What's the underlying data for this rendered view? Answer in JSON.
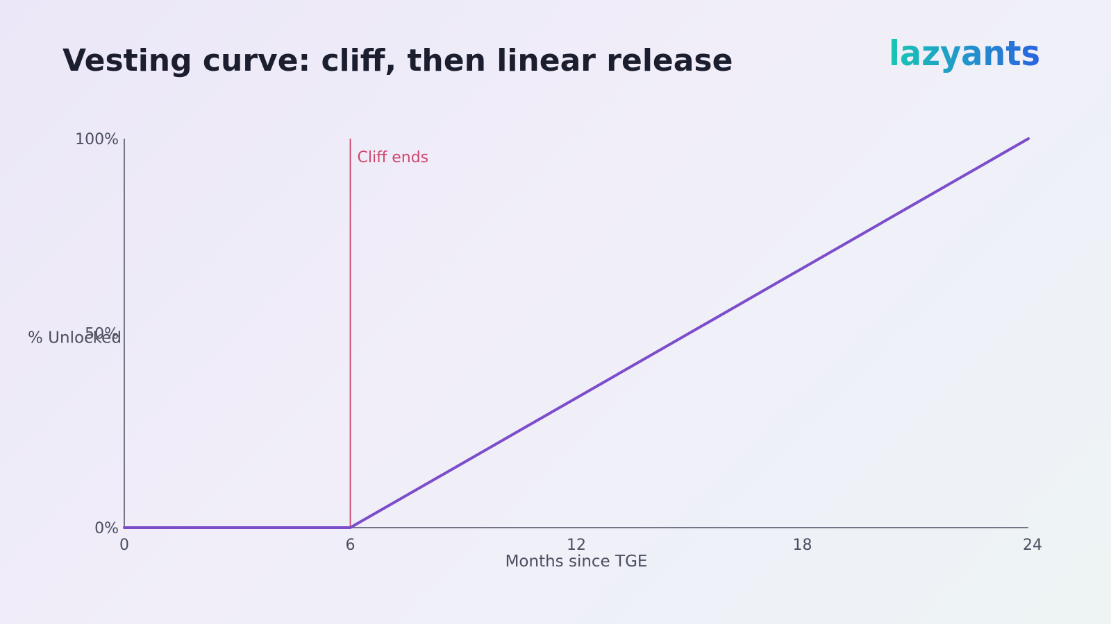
{
  "header": {
    "title": "Vesting curve: cliff, then linear release",
    "brand_logo_text": "lazyants"
  },
  "colors": {
    "title": "#1b1e2e",
    "axis": "#4a4d5e",
    "line": "#7c4dca",
    "cliff": "#d0466d",
    "logo_start": "#18c8b3",
    "logo_end": "#2a63e0"
  },
  "chart_data": {
    "type": "line",
    "title": "Vesting curve: cliff, then linear release",
    "xlabel": "Months since TGE",
    "ylabel": "% Unlocked",
    "xlim": [
      0,
      24
    ],
    "ylim": [
      0,
      100
    ],
    "x_ticks": [
      {
        "value": 0,
        "label": "0"
      },
      {
        "value": 6,
        "label": "6"
      },
      {
        "value": 12,
        "label": "12"
      },
      {
        "value": 18,
        "label": "18"
      },
      {
        "value": 24,
        "label": "24"
      }
    ],
    "y_ticks": [
      {
        "value": 0,
        "label": "0%"
      },
      {
        "value": 50,
        "label": "50%"
      },
      {
        "value": 100,
        "label": "100%"
      }
    ],
    "grid": false,
    "legend": "none",
    "series": [
      {
        "x": [
          0,
          6,
          24
        ],
        "y": [
          0,
          0,
          100
        ]
      }
    ],
    "annotations": [
      {
        "type": "vertical-line",
        "x": 6,
        "label": "Cliff ends"
      }
    ]
  }
}
